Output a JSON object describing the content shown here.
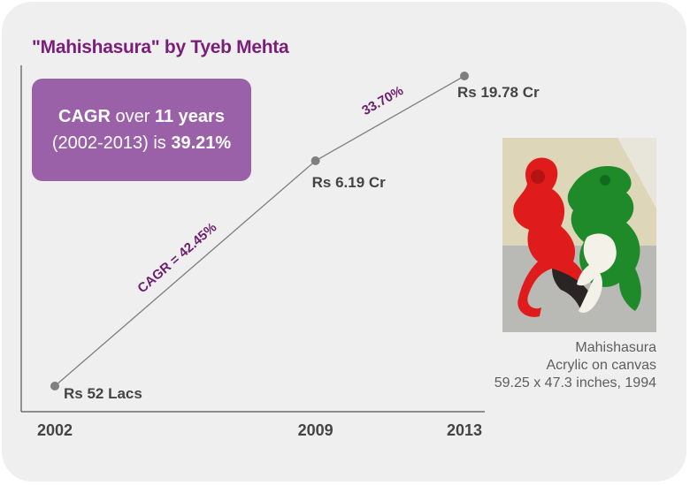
{
  "title": "\"Mahishasura\" by Tyeb Mehta",
  "cagr_box": {
    "label_bold": "CAGR",
    "label_mid": " over ",
    "years_bold": "11 years",
    "period": "(2002-2013) is ",
    "value_bold": "39.21%"
  },
  "chart_data": {
    "type": "line",
    "title": "\"Mahishasura\" by Tyeb Mehta",
    "x": [
      2002,
      2009,
      2013
    ],
    "values_cr": [
      0.52,
      6.19,
      19.78
    ],
    "point_labels": [
      "Rs 52 Lacs",
      "Rs 6.19 Cr",
      "Rs 19.78 Cr"
    ],
    "tick_labels": [
      "2002",
      "2009",
      "2013"
    ],
    "segment_labels": [
      "CAGR = 42.45%",
      "33.70%"
    ],
    "xlabel": "",
    "ylabel": "",
    "grid": false,
    "line_color": "#7f7f7f",
    "label_color": "#444444",
    "segment_label_color": "#6e1e6e"
  },
  "artwork": {
    "caption_line1": "Mahishasura",
    "caption_line2": "Acrylic on canvas",
    "caption_line3": "59.25 x 47.3 inches, 1994"
  },
  "colors": {
    "accent_purple": "#7a1e7a",
    "box_purple": "#9b61a8",
    "card_bg": "#efefef"
  }
}
